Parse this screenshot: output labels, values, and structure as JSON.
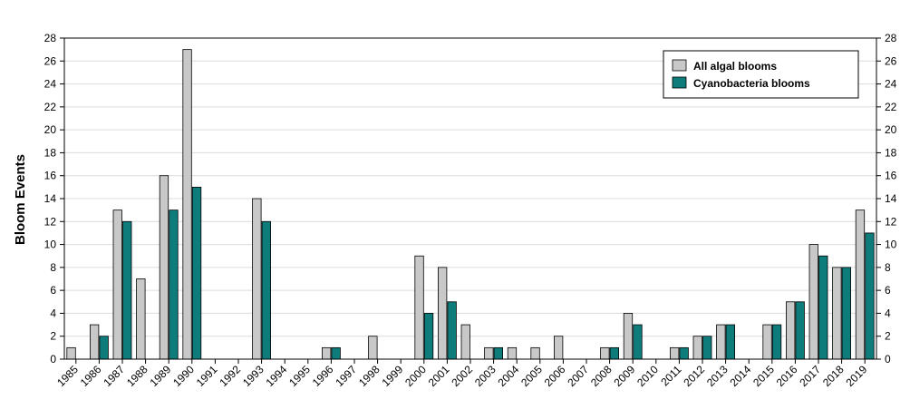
{
  "chart_data": {
    "type": "bar",
    "title": "",
    "xlabel": "",
    "ylabel": "Bloom Events",
    "ylim": [
      0,
      28
    ],
    "ytick_step": 2,
    "y_axis_right": true,
    "grid": true,
    "legend_position": "top-right",
    "categories": [
      "1985",
      "1986",
      "1987",
      "1988",
      "1989",
      "1990",
      "1991",
      "1992",
      "1993",
      "1994",
      "1995",
      "1996",
      "1997",
      "1998",
      "1999",
      "2000",
      "2001",
      "2002",
      "2003",
      "2004",
      "2005",
      "2006",
      "2007",
      "2008",
      "2009",
      "2010",
      "2011",
      "2012",
      "2013",
      "2014",
      "2015",
      "2016",
      "2017",
      "2018",
      "2019"
    ],
    "series": [
      {
        "name": "All algal blooms",
        "color": "#c8c8c8",
        "values": [
          1,
          3,
          13,
          7,
          16,
          27,
          0,
          0,
          14,
          0,
          0,
          1,
          0,
          2,
          0,
          9,
          8,
          3,
          1,
          1,
          1,
          2,
          0,
          1,
          4,
          0,
          1,
          2,
          3,
          0,
          3,
          5,
          10,
          8,
          13
        ]
      },
      {
        "name": "Cyanobacteria blooms",
        "color": "#0e7c7b",
        "values": [
          0,
          2,
          12,
          0,
          13,
          15,
          0,
          0,
          12,
          0,
          0,
          1,
          0,
          0,
          0,
          4,
          5,
          0,
          1,
          0,
          0,
          0,
          0,
          1,
          3,
          0,
          1,
          2,
          3,
          0,
          3,
          5,
          9,
          8,
          11
        ]
      }
    ]
  }
}
